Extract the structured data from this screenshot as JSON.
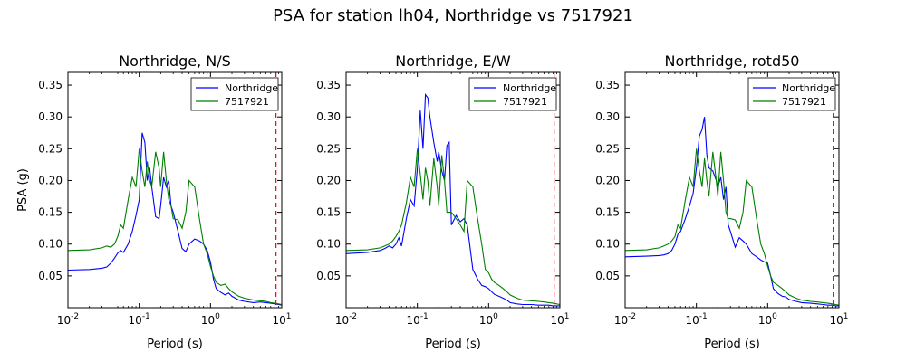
{
  "figure": {
    "suptitle": "PSA for station lh04, Northridge vs 7517921"
  },
  "chart_data": [
    {
      "type": "line",
      "title": "Northridge, N/S",
      "xlabel": "Period (s)",
      "ylabel": "PSA (g)",
      "x_scale": "log",
      "xlim": [
        0.01,
        10
      ],
      "ylim": [
        0.0,
        0.37
      ],
      "x_ticks": [
        {
          "value": 0.01,
          "label": "10^-2"
        },
        {
          "value": 0.1,
          "label": "10^-1"
        },
        {
          "value": 1,
          "label": "10^0"
        },
        {
          "value": 10,
          "label": "10^1"
        }
      ],
      "y_ticks": [
        0.05,
        0.1,
        0.15,
        0.2,
        0.25,
        0.3,
        0.35
      ],
      "legend_position": "top-right",
      "vline": {
        "x": 8.3,
        "color": "#ff0000",
        "style": "dashed"
      },
      "series": [
        {
          "name": "Northridge",
          "color": "#0000ff",
          "x": [
            0.01,
            0.02,
            0.03,
            0.035,
            0.04,
            0.045,
            0.05,
            0.055,
            0.06,
            0.07,
            0.08,
            0.09,
            0.1,
            0.11,
            0.12,
            0.13,
            0.14,
            0.15,
            0.17,
            0.19,
            0.2,
            0.22,
            0.24,
            0.26,
            0.28,
            0.3,
            0.35,
            0.4,
            0.45,
            0.5,
            0.6,
            0.7,
            0.8,
            0.9,
            1.0,
            1.1,
            1.2,
            1.4,
            1.6,
            1.8,
            2.0,
            2.5,
            3.0,
            4.0,
            5.0,
            6.0,
            7.0,
            8.0,
            9.0,
            10.0
          ],
          "y": [
            0.059,
            0.06,
            0.062,
            0.064,
            0.07,
            0.078,
            0.086,
            0.09,
            0.087,
            0.1,
            0.12,
            0.145,
            0.17,
            0.275,
            0.26,
            0.2,
            0.22,
            0.19,
            0.143,
            0.14,
            0.16,
            0.205,
            0.19,
            0.2,
            0.16,
            0.15,
            0.12,
            0.093,
            0.088,
            0.1,
            0.108,
            0.105,
            0.1,
            0.09,
            0.072,
            0.045,
            0.03,
            0.024,
            0.02,
            0.023,
            0.018,
            0.012,
            0.01,
            0.008,
            0.009,
            0.008,
            0.007,
            0.006,
            0.005,
            0.004
          ]
        },
        {
          "name": "7517921",
          "color": "#008000",
          "x": [
            0.01,
            0.02,
            0.03,
            0.035,
            0.04,
            0.045,
            0.05,
            0.055,
            0.06,
            0.07,
            0.08,
            0.09,
            0.1,
            0.11,
            0.12,
            0.13,
            0.14,
            0.15,
            0.17,
            0.19,
            0.2,
            0.22,
            0.24,
            0.26,
            0.28,
            0.3,
            0.35,
            0.4,
            0.45,
            0.5,
            0.6,
            0.7,
            0.8,
            0.9,
            1.0,
            1.1,
            1.2,
            1.4,
            1.6,
            1.8,
            2.0,
            2.5,
            3.0,
            4.0,
            5.0,
            6.0,
            7.0,
            8.0,
            9.0,
            10.0
          ],
          "y": [
            0.09,
            0.091,
            0.094,
            0.097,
            0.095,
            0.1,
            0.112,
            0.13,
            0.125,
            0.17,
            0.205,
            0.19,
            0.25,
            0.215,
            0.19,
            0.23,
            0.2,
            0.19,
            0.245,
            0.22,
            0.19,
            0.245,
            0.2,
            0.17,
            0.16,
            0.14,
            0.138,
            0.125,
            0.15,
            0.2,
            0.19,
            0.14,
            0.1,
            0.085,
            0.065,
            0.05,
            0.04,
            0.035,
            0.037,
            0.03,
            0.025,
            0.018,
            0.015,
            0.012,
            0.011,
            0.01,
            0.008,
            0.007,
            0.006,
            0.005
          ]
        }
      ]
    },
    {
      "type": "line",
      "title": "Northridge, E/W",
      "xlabel": "Period (s)",
      "ylabel": "",
      "x_scale": "log",
      "xlim": [
        0.01,
        10
      ],
      "ylim": [
        0.0,
        0.37
      ],
      "x_ticks": [
        {
          "value": 0.01,
          "label": "10^-2"
        },
        {
          "value": 0.1,
          "label": "10^-1"
        },
        {
          "value": 1,
          "label": "10^0"
        },
        {
          "value": 10,
          "label": "10^1"
        }
      ],
      "y_ticks": [
        0.05,
        0.1,
        0.15,
        0.2,
        0.25,
        0.3,
        0.35
      ],
      "legend_position": "top-right",
      "vline": {
        "x": 8.3,
        "color": "#ff0000",
        "style": "dashed"
      },
      "series": [
        {
          "name": "Northridge",
          "color": "#0000ff",
          "x": [
            0.01,
            0.02,
            0.03,
            0.035,
            0.04,
            0.045,
            0.05,
            0.055,
            0.06,
            0.07,
            0.08,
            0.09,
            0.1,
            0.11,
            0.12,
            0.13,
            0.14,
            0.15,
            0.17,
            0.19,
            0.2,
            0.22,
            0.24,
            0.26,
            0.28,
            0.3,
            0.35,
            0.4,
            0.45,
            0.5,
            0.6,
            0.7,
            0.8,
            0.9,
            1.0,
            1.1,
            1.2,
            1.4,
            1.6,
            1.8,
            2.0,
            2.5,
            3.0,
            4.0,
            5.0,
            6.0,
            7.0,
            8.0,
            9.0,
            10.0
          ],
          "y": [
            0.085,
            0.087,
            0.09,
            0.093,
            0.097,
            0.094,
            0.1,
            0.11,
            0.097,
            0.14,
            0.17,
            0.16,
            0.22,
            0.31,
            0.25,
            0.335,
            0.33,
            0.3,
            0.26,
            0.23,
            0.245,
            0.215,
            0.2,
            0.255,
            0.26,
            0.13,
            0.145,
            0.135,
            0.14,
            0.13,
            0.06,
            0.045,
            0.035,
            0.033,
            0.03,
            0.025,
            0.021,
            0.018,
            0.015,
            0.012,
            0.008,
            0.006,
            0.005,
            0.005,
            0.004,
            0.004,
            0.004,
            0.003,
            0.003,
            0.003
          ]
        },
        {
          "name": "7517921",
          "color": "#008000",
          "x": [
            0.01,
            0.02,
            0.03,
            0.035,
            0.04,
            0.045,
            0.05,
            0.055,
            0.06,
            0.07,
            0.08,
            0.09,
            0.1,
            0.11,
            0.12,
            0.13,
            0.14,
            0.15,
            0.17,
            0.19,
            0.2,
            0.22,
            0.24,
            0.26,
            0.28,
            0.3,
            0.35,
            0.4,
            0.45,
            0.5,
            0.6,
            0.7,
            0.8,
            0.9,
            1.0,
            1.1,
            1.2,
            1.4,
            1.6,
            1.8,
            2.0,
            2.5,
            3.0,
            4.0,
            5.0,
            6.0,
            7.0,
            8.0,
            9.0,
            10.0
          ],
          "y": [
            0.09,
            0.091,
            0.094,
            0.097,
            0.1,
            0.105,
            0.112,
            0.12,
            0.13,
            0.165,
            0.205,
            0.19,
            0.25,
            0.21,
            0.17,
            0.22,
            0.2,
            0.16,
            0.235,
            0.19,
            0.16,
            0.24,
            0.2,
            0.15,
            0.15,
            0.15,
            0.14,
            0.13,
            0.12,
            0.2,
            0.19,
            0.14,
            0.1,
            0.06,
            0.055,
            0.045,
            0.04,
            0.035,
            0.03,
            0.025,
            0.02,
            0.015,
            0.012,
            0.011,
            0.01,
            0.009,
            0.008,
            0.007,
            0.006,
            0.005
          ]
        }
      ]
    },
    {
      "type": "line",
      "title": "Northridge, rotd50",
      "xlabel": "Period (s)",
      "ylabel": "",
      "x_scale": "log",
      "xlim": [
        0.01,
        10
      ],
      "ylim": [
        0.0,
        0.37
      ],
      "x_ticks": [
        {
          "value": 0.01,
          "label": "10^-2"
        },
        {
          "value": 0.1,
          "label": "10^-1"
        },
        {
          "value": 1,
          "label": "10^0"
        },
        {
          "value": 10,
          "label": "10^1"
        }
      ],
      "y_ticks": [
        0.05,
        0.1,
        0.15,
        0.2,
        0.25,
        0.3,
        0.35
      ],
      "legend_position": "top-right",
      "vline": {
        "x": 8.3,
        "color": "#ff0000",
        "style": "dashed"
      },
      "series": [
        {
          "name": "Northridge",
          "color": "#0000ff",
          "x": [
            0.01,
            0.02,
            0.03,
            0.035,
            0.04,
            0.045,
            0.05,
            0.055,
            0.06,
            0.07,
            0.08,
            0.09,
            0.1,
            0.11,
            0.12,
            0.13,
            0.14,
            0.15,
            0.17,
            0.19,
            0.2,
            0.22,
            0.24,
            0.26,
            0.28,
            0.3,
            0.35,
            0.4,
            0.45,
            0.5,
            0.6,
            0.7,
            0.8,
            0.9,
            1.0,
            1.1,
            1.2,
            1.4,
            1.6,
            1.8,
            2.0,
            2.5,
            3.0,
            4.0,
            5.0,
            6.0,
            7.0,
            8.0,
            9.0,
            10.0
          ],
          "y": [
            0.08,
            0.081,
            0.082,
            0.083,
            0.085,
            0.09,
            0.1,
            0.115,
            0.12,
            0.14,
            0.16,
            0.18,
            0.22,
            0.27,
            0.28,
            0.3,
            0.24,
            0.22,
            0.215,
            0.2,
            0.19,
            0.205,
            0.17,
            0.19,
            0.13,
            0.12,
            0.095,
            0.11,
            0.105,
            0.1,
            0.085,
            0.08,
            0.075,
            0.072,
            0.07,
            0.05,
            0.03,
            0.022,
            0.018,
            0.017,
            0.013,
            0.01,
            0.008,
            0.007,
            0.006,
            0.005,
            0.004,
            0.004,
            0.003,
            0.003
          ]
        },
        {
          "name": "7517921",
          "color": "#008000",
          "x": [
            0.01,
            0.02,
            0.03,
            0.035,
            0.04,
            0.045,
            0.05,
            0.055,
            0.06,
            0.07,
            0.08,
            0.09,
            0.1,
            0.11,
            0.12,
            0.13,
            0.14,
            0.15,
            0.17,
            0.19,
            0.2,
            0.22,
            0.24,
            0.26,
            0.28,
            0.3,
            0.35,
            0.4,
            0.45,
            0.5,
            0.6,
            0.7,
            0.8,
            0.9,
            1.0,
            1.1,
            1.2,
            1.4,
            1.6,
            1.8,
            2.0,
            2.5,
            3.0,
            4.0,
            5.0,
            6.0,
            7.0,
            8.0,
            9.0,
            10.0
          ],
          "y": [
            0.09,
            0.091,
            0.094,
            0.097,
            0.1,
            0.105,
            0.112,
            0.13,
            0.125,
            0.17,
            0.205,
            0.19,
            0.25,
            0.215,
            0.19,
            0.235,
            0.2,
            0.175,
            0.245,
            0.2,
            0.175,
            0.245,
            0.2,
            0.15,
            0.14,
            0.14,
            0.138,
            0.125,
            0.15,
            0.2,
            0.19,
            0.14,
            0.1,
            0.085,
            0.065,
            0.05,
            0.04,
            0.035,
            0.03,
            0.025,
            0.02,
            0.015,
            0.012,
            0.01,
            0.009,
            0.008,
            0.007,
            0.006,
            0.005,
            0.004
          ]
        }
      ]
    }
  ]
}
